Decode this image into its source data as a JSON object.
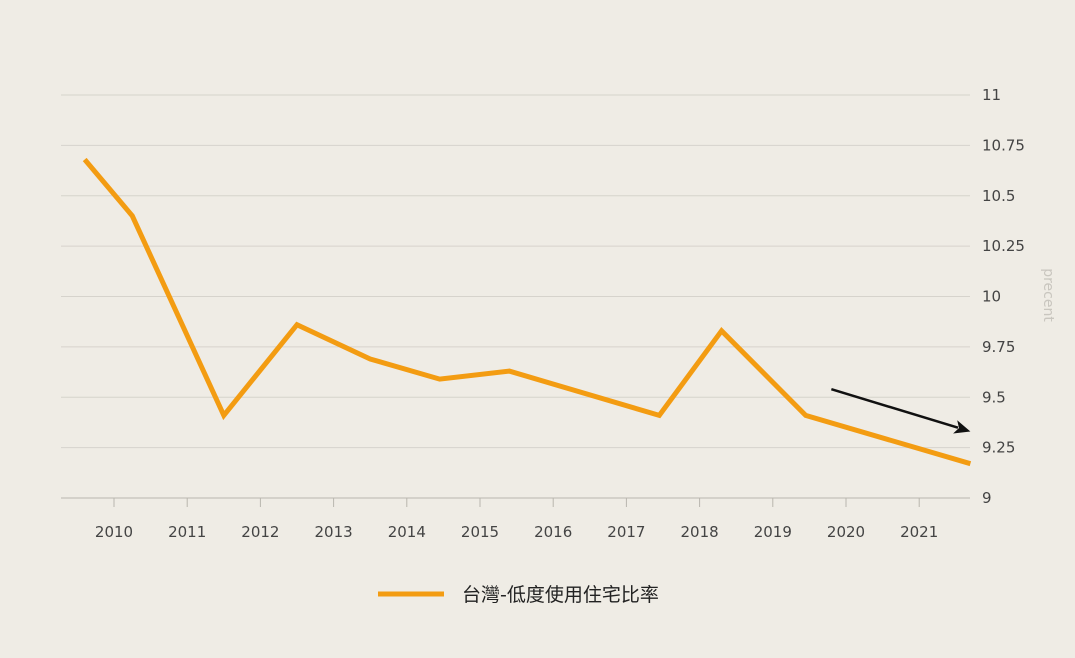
{
  "chart_data": {
    "type": "line",
    "x_ticks": [
      "2010",
      "2011",
      "2012",
      "2013",
      "2014",
      "2015",
      "2016",
      "2017",
      "2018",
      "2019",
      "2020",
      "2021"
    ],
    "y_ticks": [
      "11",
      "10.75",
      "10.5",
      "10.25",
      "10",
      "9.75",
      "9.5",
      "9.25",
      "9"
    ],
    "ylim": [
      9,
      11
    ],
    "ylabel": "precent",
    "grid": "horizontal",
    "legend_position": "bottom-center",
    "series": [
      {
        "name": "台灣-低度使用住宅比率",
        "color": "#f39c12",
        "points": [
          {
            "x": 2009.6,
            "y": 10.68
          },
          {
            "x": 2010.25,
            "y": 10.4
          },
          {
            "x": 2011.5,
            "y": 9.41
          },
          {
            "x": 2012.5,
            "y": 9.86
          },
          {
            "x": 2013.5,
            "y": 9.69
          },
          {
            "x": 2014.45,
            "y": 9.59
          },
          {
            "x": 2015.4,
            "y": 9.63
          },
          {
            "x": 2017.45,
            "y": 9.41
          },
          {
            "x": 2018.3,
            "y": 9.83
          },
          {
            "x": 2019.45,
            "y": 9.41
          },
          {
            "x": 2021.7,
            "y": 9.17
          }
        ]
      }
    ],
    "annotations": [
      {
        "type": "arrow",
        "color": "#111111",
        "from": {
          "x": 2019.8,
          "y": 9.54
        },
        "to": {
          "x": 2021.7,
          "y": 9.33
        }
      }
    ]
  }
}
